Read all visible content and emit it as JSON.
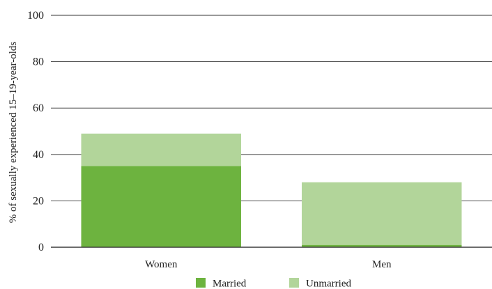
{
  "chart_data": {
    "type": "bar",
    "stacked": true,
    "title": "",
    "xlabel": "",
    "ylabel": "% of sexually experienced 15–19-year-olds",
    "ylim": [
      0,
      100
    ],
    "yticks": [
      0,
      20,
      40,
      60,
      80,
      100
    ],
    "grid": true,
    "legend": "bottom",
    "categories": [
      "Women",
      "Men"
    ],
    "series": [
      {
        "name": "Married",
        "values": [
          35,
          1
        ],
        "color": "#6db33f"
      },
      {
        "name": "Unmarried",
        "values": [
          14,
          27
        ],
        "color": "#b2d59a"
      }
    ]
  }
}
